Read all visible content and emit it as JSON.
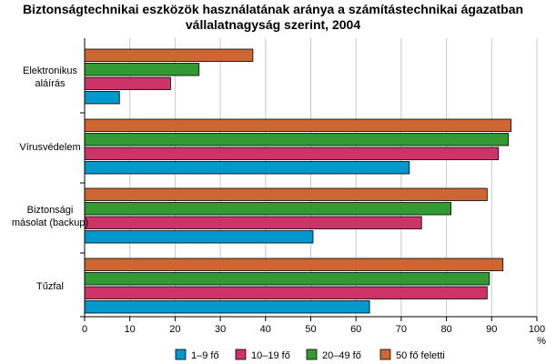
{
  "chart_data": {
    "type": "bar",
    "orientation": "horizontal",
    "title_lines": [
      "Biztonságtechnikai eszközök használatának aránya a számítástechnikai ágazatban",
      "vállalatnagyság szerint, 2004"
    ],
    "categories": [
      [
        "Elektronikus",
        "aláírás"
      ],
      [
        "Vírusvédelem"
      ],
      [
        "Biztonsági",
        "másolat (backup)"
      ],
      [
        "Tűzfal"
      ]
    ],
    "series": [
      {
        "name": "1–9 fő",
        "color": "#0098cd",
        "values": [
          7.7,
          71.8,
          50.5,
          63.0
        ]
      },
      {
        "name": "10–19 fő",
        "color": "#cc3366",
        "values": [
          19.0,
          91.5,
          74.5,
          89.0
        ]
      },
      {
        "name": "20–49 fő",
        "color": "#339933",
        "values": [
          25.3,
          93.7,
          81.0,
          89.5
        ]
      },
      {
        "name": "50 fő feletti",
        "color": "#cc6633",
        "values": [
          37.2,
          94.3,
          89.0,
          92.5
        ]
      }
    ],
    "x_ticks": [
      "0",
      "10",
      "20",
      "30",
      "40",
      "50",
      "60",
      "70",
      "80",
      "90",
      "100"
    ],
    "xlim": [
      0,
      100
    ],
    "xunit": "%",
    "legend_position": "bottom",
    "grid": true
  }
}
